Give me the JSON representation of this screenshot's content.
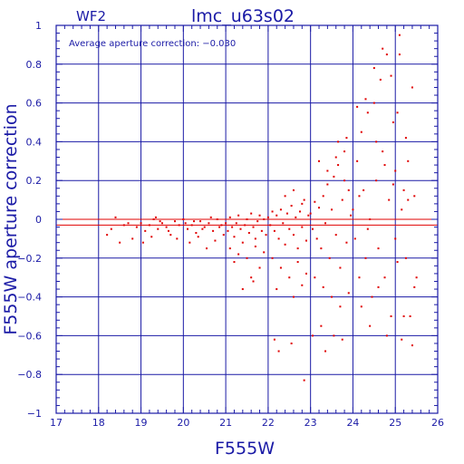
{
  "chart_data": {
    "type": "scatter",
    "chip_label": "WF2",
    "title": "lmc_u63s02",
    "annotation": "Average aperture correction: −0.030",
    "xlabel": "F555W",
    "ylabel": "F555W aperture correction",
    "xlim": [
      17,
      26
    ],
    "ylim": [
      -1,
      1
    ],
    "x_ticks": [
      17,
      18,
      19,
      20,
      21,
      22,
      23,
      24,
      25,
      26
    ],
    "y_ticks": [
      -1,
      -0.8,
      -0.6,
      -0.4,
      -0.2,
      0,
      0.2,
      0.4,
      0.6,
      0.8,
      1
    ],
    "y_tick_labels": [
      "−1",
      "−0.8",
      "−0.6",
      "−0.4",
      "−0.2",
      "0",
      "0.2",
      "0.4",
      "0.6",
      "0.8",
      "1"
    ],
    "grid": true,
    "reference_lines": [
      0,
      -0.03
    ],
    "colors": {
      "axes": "#1a1aa6",
      "points": "#e00000",
      "reference": "#e00000"
    },
    "points": [
      [
        18.2,
        -0.08
      ],
      [
        18.3,
        -0.05
      ],
      [
        18.4,
        0.01
      ],
      [
        18.5,
        -0.12
      ],
      [
        18.6,
        -0.03
      ],
      [
        18.7,
        -0.02
      ],
      [
        18.8,
        -0.1
      ],
      [
        18.9,
        -0.04
      ],
      [
        19.0,
        -0.02
      ],
      [
        19.1,
        -0.06
      ],
      [
        19.2,
        -0.03
      ],
      [
        19.3,
        0.0
      ],
      [
        19.35,
        0.01
      ],
      [
        19.4,
        -0.05
      ],
      [
        19.5,
        -0.02
      ],
      [
        19.6,
        -0.04
      ],
      [
        19.7,
        -0.08
      ],
      [
        19.8,
        -0.01
      ],
      [
        19.9,
        -0.03
      ],
      [
        19.05,
        -0.12
      ],
      [
        19.25,
        -0.09
      ],
      [
        19.45,
        -0.01
      ],
      [
        19.65,
        -0.06
      ],
      [
        19.85,
        -0.1
      ],
      [
        20.0,
        0.0
      ],
      [
        20.05,
        -0.02
      ],
      [
        20.1,
        -0.05
      ],
      [
        20.2,
        -0.03
      ],
      [
        20.3,
        -0.07
      ],
      [
        20.4,
        -0.01
      ],
      [
        20.5,
        -0.04
      ],
      [
        20.6,
        -0.02
      ],
      [
        20.7,
        -0.06
      ],
      [
        20.8,
        0.0
      ],
      [
        20.9,
        -0.03
      ],
      [
        20.15,
        -0.12
      ],
      [
        20.35,
        -0.09
      ],
      [
        20.55,
        -0.15
      ],
      [
        20.75,
        -0.11
      ],
      [
        20.95,
        -0.08
      ],
      [
        20.25,
        -0.01
      ],
      [
        20.45,
        -0.05
      ],
      [
        20.65,
        0.01
      ],
      [
        20.85,
        -0.04
      ],
      [
        21.0,
        -0.02
      ],
      [
        21.05,
        -0.06
      ],
      [
        21.1,
        0.01
      ],
      [
        21.15,
        -0.04
      ],
      [
        21.2,
        -0.09
      ],
      [
        21.25,
        -0.02
      ],
      [
        21.3,
        0.02
      ],
      [
        21.35,
        -0.05
      ],
      [
        21.4,
        -0.12
      ],
      [
        21.45,
        -0.03
      ],
      [
        21.5,
        0.0
      ],
      [
        21.55,
        -0.07
      ],
      [
        21.6,
        0.03
      ],
      [
        21.65,
        -0.04
      ],
      [
        21.7,
        -0.1
      ],
      [
        21.75,
        -0.01
      ],
      [
        21.8,
        0.02
      ],
      [
        21.85,
        -0.06
      ],
      [
        21.9,
        0.0
      ],
      [
        21.95,
        -0.08
      ],
      [
        21.1,
        -0.15
      ],
      [
        21.3,
        -0.18
      ],
      [
        21.5,
        -0.2
      ],
      [
        21.7,
        -0.14
      ],
      [
        21.9,
        -0.17
      ],
      [
        21.4,
        -0.36
      ],
      [
        21.6,
        -0.3
      ],
      [
        21.8,
        -0.25
      ],
      [
        21.2,
        -0.22
      ],
      [
        21.65,
        -0.32
      ],
      [
        22.0,
        0.01
      ],
      [
        22.05,
        -0.03
      ],
      [
        22.1,
        0.04
      ],
      [
        22.15,
        -0.06
      ],
      [
        22.2,
        0.02
      ],
      [
        22.25,
        -0.1
      ],
      [
        22.3,
        0.05
      ],
      [
        22.35,
        -0.02
      ],
      [
        22.4,
        -0.13
      ],
      [
        22.45,
        0.03
      ],
      [
        22.5,
        -0.05
      ],
      [
        22.55,
        0.07
      ],
      [
        22.6,
        -0.08
      ],
      [
        22.65,
        0.01
      ],
      [
        22.7,
        -0.15
      ],
      [
        22.75,
        0.04
      ],
      [
        22.8,
        -0.04
      ],
      [
        22.85,
        0.1
      ],
      [
        22.9,
        -0.11
      ],
      [
        22.95,
        0.02
      ],
      [
        22.1,
        -0.2
      ],
      [
        22.3,
        -0.25
      ],
      [
        22.5,
        -0.3
      ],
      [
        22.7,
        -0.22
      ],
      [
        22.9,
        -0.28
      ],
      [
        22.2,
        -0.36
      ],
      [
        22.6,
        -0.4
      ],
      [
        22.8,
        -0.34
      ],
      [
        22.4,
        0.12
      ],
      [
        22.6,
        0.15
      ],
      [
        22.8,
        0.08
      ],
      [
        22.15,
        -0.62
      ],
      [
        22.25,
        -0.68
      ],
      [
        22.55,
        -0.64
      ],
      [
        22.85,
        -0.83
      ],
      [
        23.0,
        0.03
      ],
      [
        23.05,
        -0.05
      ],
      [
        23.1,
        0.09
      ],
      [
        23.15,
        -0.1
      ],
      [
        23.2,
        0.06
      ],
      [
        23.25,
        -0.15
      ],
      [
        23.3,
        0.12
      ],
      [
        23.35,
        -0.02
      ],
      [
        23.4,
        0.18
      ],
      [
        23.45,
        -0.2
      ],
      [
        23.5,
        0.05
      ],
      [
        23.55,
        0.22
      ],
      [
        23.6,
        -0.08
      ],
      [
        23.65,
        0.28
      ],
      [
        23.7,
        -0.25
      ],
      [
        23.75,
        0.1
      ],
      [
        23.8,
        0.2
      ],
      [
        23.85,
        -0.12
      ],
      [
        23.9,
        0.15
      ],
      [
        23.95,
        0.02
      ],
      [
        23.1,
        -0.3
      ],
      [
        23.3,
        -0.35
      ],
      [
        23.5,
        -0.4
      ],
      [
        23.7,
        -0.45
      ],
      [
        23.9,
        -0.38
      ],
      [
        23.2,
        0.3
      ],
      [
        23.4,
        0.25
      ],
      [
        23.6,
        0.32
      ],
      [
        23.8,
        0.35
      ],
      [
        23.05,
        -0.6
      ],
      [
        23.25,
        -0.55
      ],
      [
        23.55,
        -0.6
      ],
      [
        23.75,
        -0.62
      ],
      [
        23.35,
        -0.68
      ],
      [
        23.65,
        0.4
      ],
      [
        23.85,
        0.42
      ],
      [
        24.0,
        0.05
      ],
      [
        24.05,
        -0.1
      ],
      [
        24.1,
        0.3
      ],
      [
        24.15,
        -0.3
      ],
      [
        24.2,
        0.45
      ],
      [
        24.25,
        0.15
      ],
      [
        24.3,
        -0.2
      ],
      [
        24.35,
        0.55
      ],
      [
        24.4,
        0.0
      ],
      [
        24.45,
        -0.4
      ],
      [
        24.5,
        0.6
      ],
      [
        24.55,
        0.2
      ],
      [
        24.6,
        -0.15
      ],
      [
        24.65,
        0.72
      ],
      [
        24.7,
        0.35
      ],
      [
        24.75,
        -0.3
      ],
      [
        24.8,
        0.85
      ],
      [
        24.85,
        0.1
      ],
      [
        24.9,
        -0.5
      ],
      [
        24.95,
        0.5
      ],
      [
        24.1,
        0.58
      ],
      [
        24.3,
        0.62
      ],
      [
        24.5,
        0.78
      ],
      [
        24.7,
        0.88
      ],
      [
        24.9,
        0.74
      ],
      [
        24.2,
        -0.45
      ],
      [
        24.4,
        -0.55
      ],
      [
        24.6,
        -0.35
      ],
      [
        24.8,
        -0.6
      ],
      [
        24.15,
        0.12
      ],
      [
        24.35,
        -0.05
      ],
      [
        24.55,
        0.4
      ],
      [
        24.75,
        0.28
      ],
      [
        24.95,
        0.18
      ],
      [
        25.0,
        0.25
      ],
      [
        25.05,
        -0.22
      ],
      [
        25.1,
        0.85
      ],
      [
        25.15,
        0.05
      ],
      [
        25.2,
        -0.5
      ],
      [
        25.25,
        0.42
      ],
      [
        25.3,
        0.1
      ],
      [
        25.35,
        -0.5
      ],
      [
        25.4,
        0.68
      ],
      [
        25.45,
        -0.35
      ],
      [
        25.05,
        0.55
      ],
      [
        25.15,
        -0.62
      ],
      [
        25.25,
        -0.2
      ],
      [
        25.4,
        -0.65
      ],
      [
        25.5,
        -0.3
      ],
      [
        25.0,
        -0.1
      ],
      [
        25.1,
        0.95
      ],
      [
        25.3,
        0.3
      ],
      [
        25.45,
        0.12
      ],
      [
        25.2,
        0.15
      ]
    ]
  }
}
